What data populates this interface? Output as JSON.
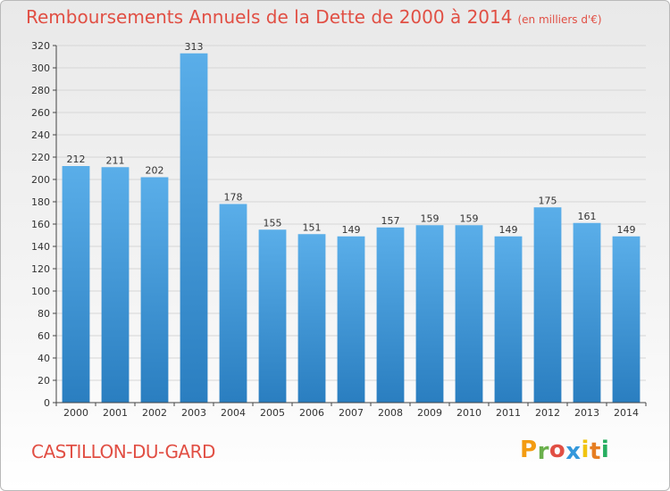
{
  "title": "Remboursements Annuels de la Dette de 2000 à 2014",
  "subtitle": "(en milliers d'€)",
  "place": "CASTILLON-DU-GARD",
  "logo": {
    "letters": [
      "P",
      "r",
      "o",
      "x",
      "i",
      "t",
      "i"
    ],
    "colors": [
      "#f39c12",
      "#6ab04c",
      "#e14f44",
      "#3498db",
      "#f1c40f",
      "#e67e22",
      "#27ae60"
    ]
  },
  "colors": {
    "accent": "#e14f44",
    "bar_top": "#5aaee9",
    "bar_bottom": "#2a7ec0",
    "grid": "#d6d6d6",
    "axis": "#444444"
  },
  "chart_data": {
    "type": "bar",
    "title": "Remboursements Annuels de la Dette de 2000 à 2014",
    "subtitle": "(en milliers d'€)",
    "categories": [
      "2000",
      "2001",
      "2002",
      "2003",
      "2004",
      "2005",
      "2006",
      "2007",
      "2008",
      "2009",
      "2010",
      "2011",
      "2012",
      "2013",
      "2014"
    ],
    "values": [
      212,
      211,
      202,
      313,
      178,
      155,
      151,
      149,
      157,
      159,
      159,
      149,
      175,
      161,
      149
    ],
    "ylim": [
      0,
      320
    ],
    "yticks": [
      0,
      20,
      40,
      60,
      80,
      100,
      120,
      140,
      160,
      180,
      200,
      220,
      240,
      260,
      280,
      300,
      320
    ],
    "grid": true,
    "xlabel": "",
    "ylabel": ""
  }
}
